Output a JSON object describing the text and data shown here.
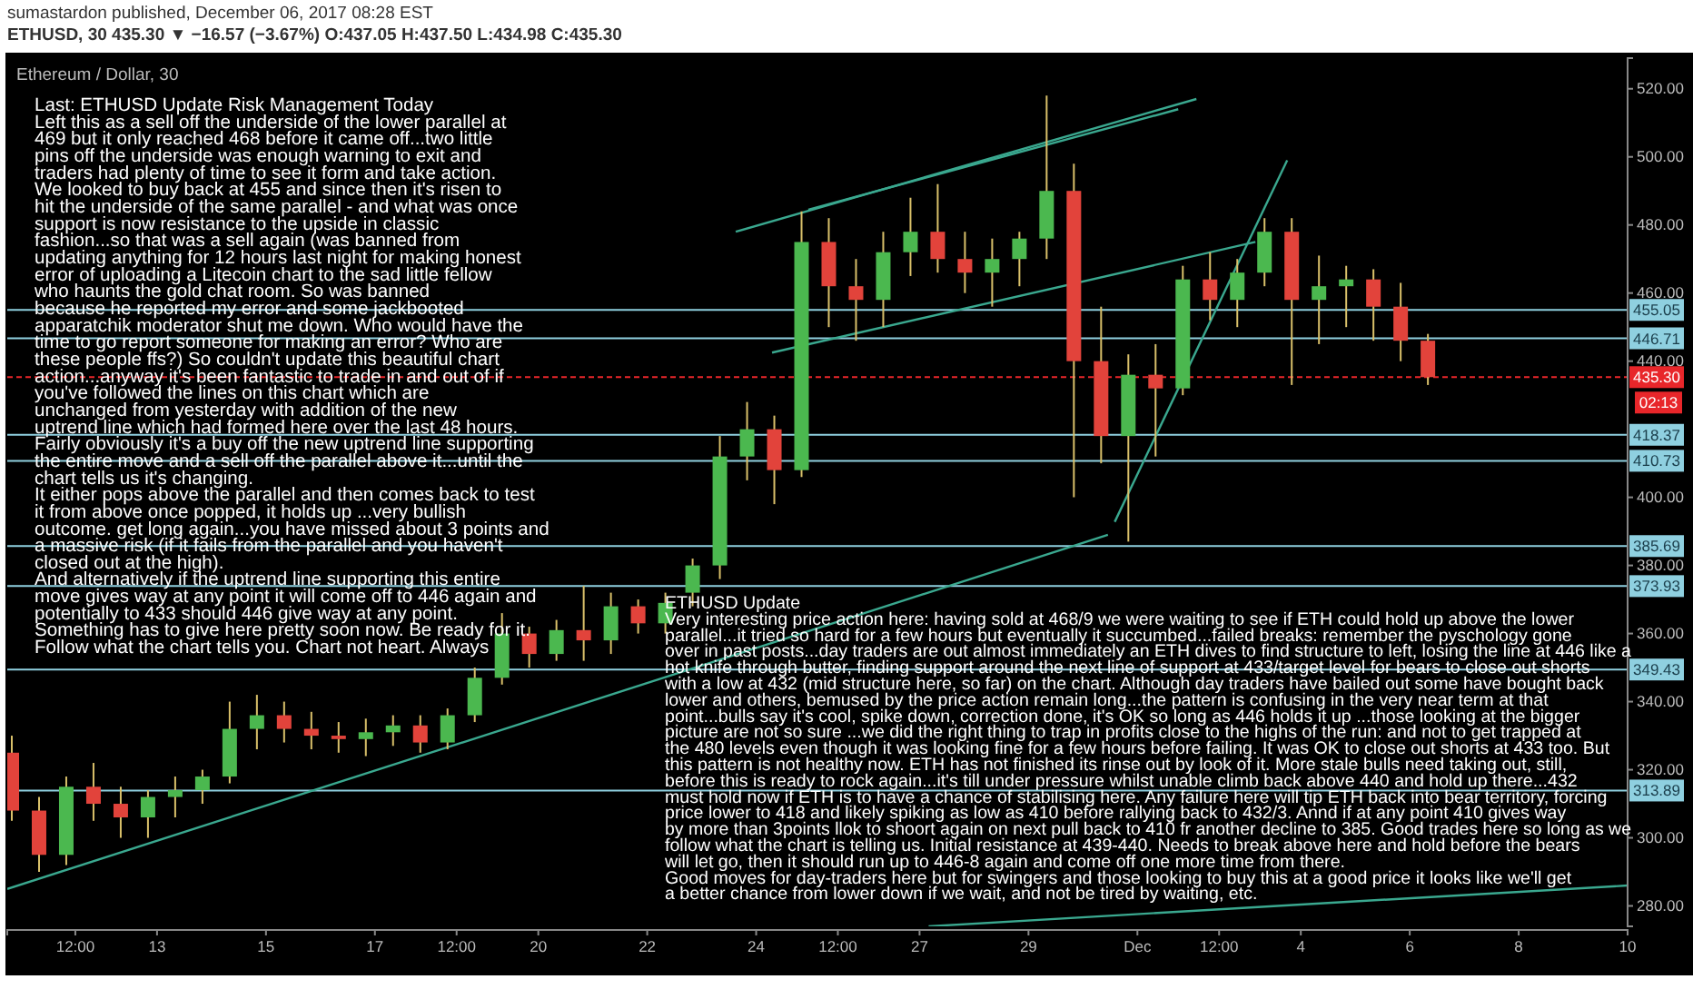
{
  "chart_data": {
    "type": "candlestick",
    "title": "Ethereum / Dollar, 30",
    "subtitle": "ETHUSD, 30 435.30 ▼ −16.57 (−3.67%) O:437.05 H:437.50 L:434.98 C:435.30",
    "annotations": [
      "sumastardon published, December 06, 2017 08:28 EST",
      "Last: ETHUSD Update  Risk Management Today\nLeft this as a sell off the underside of the lower parallel at\n469 but it only reached 468 before it came off...two little\npins off the underside was enough warning to exit and\ntraders had plenty of time to see it form and take action.\nWe looked to buy back at 455 and since then it's risen to\nhit the underside of the same parallel - and what was once\nsupport is now resistance to the upside in classic\nfashion...so that was a sell again (was banned from\nupdating anything for 12 hours last night for making honest\nerror of uploading a Litecoin chart to the sad little fellow\nwho haunts the gold chat room. So was banned\nbecause he reported my error and some jackbooted\napparatchik moderator shut me down. Who would have the\ntime to go report someone for making an error? Who are\nthese people ffs?) So couldn't update this beautiful chart\naction...anyway it's been fantastic to trade in and out of if\nyou've followed the lines on this chart which are\nunchanged from yesterday with addition of the new\nuptrend line which had formed here over the last 48 hours.\nFairly obviously it's a buy off the new uptrend line supporting\nthe entire move and a sell off the parallel above it...until the\nchart tells us it's changing.\nIt either pops above the parallel and then comes back to test\nit from above once popped, it holds up ...very bullish\noutcome. get long again...you have missed about 3 points and\na massive risk (if it fails from the parallel and you haven't\nclosed out at the high).\nAnd alternatively if the uptrend line supporting this entire\nmove gives way at any point it will come off to 446 again and\npotentially to 433 should 446 give way at any point.\nSomething has to give here pretty soon now. Be ready for it.\nFollow what the chart tells you. Chart not heart. Always",
      "ETHUSD  Update\nVery interesting price action here: having sold at 468/9 we were waiting to see if ETH could hold up above the lower\nparallel...it tried so hard for a few hours but eventually it succumbed...failed breaks: remember the pyschology gone\nover in past posts...day traders are out almost immediately an ETH dives to find structure to left, losing the line at 446 like a\nhot knife through butter, finding support around the next line of support at 433/target level for bears to close out shorts\nwith a low at 432 (mid structure here, so far) on the chart. Although day traders have bailed out some have bought back\nlower and others, bemused by the price action remain long...the pattern is confusing in the very near term at that\npoint...bulls say it's cool, spike down, correction done, it's OK so long as 446 holds it up ...those looking at the bigger\npicture are not so sure ...we did the right thing to trap in profits close to the highs of the run: and not to get trapped at\nthe 480 levels even though it was looking fine for a few hours before failing. It was OK to close out shorts at 433 too. But\nthis pattern is not healthy now. ETH has not finished its rinse out by look of it. More stale bulls need taking out, still,\nbefore this is ready to rock again...it's till under pressure whilst unable climb back above 440 and hold up there...432\nmust hold now if ETH is to have a chance of stabilising here. Any failure here will tip ETH back into bear territory, forcing\nprice lower to 418 and likely spiking as low as 410 before rallying back to 432/3. Annd if at any point 410 gives way\nby more than 3points llok to shoort again on next pull back to 410 fr another decline to 385. Good trades here so long as we\nfollow what the chart is telling us. Initial resistance at 439-440. Needs to break above here and hold before the bears\nwill let go, then it should run up to 446-8 again and come off one more time from there.\nGood moves for day-traders here but for swingers and those looking to buy this at a good price it looks like we'll get\na better chance from lower down if we wait, and not be tired by waiting, etc.",
      "02:13"
    ],
    "x": [
      "2017-11-10T08:00",
      "2017-11-10T20:00",
      "2017-11-11T08:00",
      "2017-11-11T20:00",
      "2017-11-12T08:00",
      "2017-11-12T20:00",
      "2017-11-13T08:00",
      "2017-11-13T20:00",
      "2017-11-14T08:00",
      "2017-11-14T20:00",
      "2017-11-15T08:00",
      "2017-11-15T20:00",
      "2017-11-16T08:00",
      "2017-11-16T20:00",
      "2017-11-17T08:00",
      "2017-11-17T20:00",
      "2017-11-18T08:00",
      "2017-11-18T20:00",
      "2017-11-19T08:00",
      "2017-11-19T20:00",
      "2017-11-20T08:00",
      "2017-11-20T20:00",
      "2017-11-21T08:00",
      "2017-11-21T20:00",
      "2017-11-22T08:00",
      "2017-11-22T20:00",
      "2017-11-23T08:00",
      "2017-11-23T20:00",
      "2017-11-24T08:00",
      "2017-11-24T20:00",
      "2017-11-25T08:00",
      "2017-11-25T20:00",
      "2017-11-26T08:00",
      "2017-11-26T20:00",
      "2017-11-27T08:00",
      "2017-11-27T20:00",
      "2017-11-28T08:00",
      "2017-11-28T20:00",
      "2017-11-29T08:00",
      "2017-11-29T20:00",
      "2017-11-30T08:00",
      "2017-11-30T20:00",
      "2017-12-01T08:00",
      "2017-12-01T20:00",
      "2017-12-02T08:00",
      "2017-12-02T20:00",
      "2017-12-03T08:00",
      "2017-12-03T20:00",
      "2017-12-04T08:00",
      "2017-12-04T20:00",
      "2017-12-05T08:00",
      "2017-12-05T20:00",
      "2017-12-06T08:00"
    ],
    "ohlc": [
      [
        325,
        330,
        305,
        308
      ],
      [
        308,
        312,
        290,
        295
      ],
      [
        295,
        318,
        292,
        315
      ],
      [
        315,
        322,
        305,
        310
      ],
      [
        310,
        315,
        300,
        306
      ],
      [
        306,
        314,
        300,
        312
      ],
      [
        312,
        318,
        306,
        314
      ],
      [
        314,
        320,
        310,
        318
      ],
      [
        318,
        340,
        316,
        332
      ],
      [
        332,
        342,
        326,
        336
      ],
      [
        336,
        340,
        328,
        332
      ],
      [
        332,
        337,
        326,
        330
      ],
      [
        330,
        334,
        325,
        329
      ],
      [
        329,
        335,
        324,
        331
      ],
      [
        331,
        336,
        327,
        333
      ],
      [
        333,
        336,
        325,
        328
      ],
      [
        328,
        338,
        326,
        336
      ],
      [
        336,
        350,
        334,
        347
      ],
      [
        347,
        366,
        345,
        360
      ],
      [
        360,
        362,
        350,
        354
      ],
      [
        354,
        364,
        352,
        361
      ],
      [
        361,
        374,
        352,
        358
      ],
      [
        358,
        372,
        354,
        368
      ],
      [
        368,
        370,
        360,
        363
      ],
      [
        363,
        372,
        360,
        369
      ],
      [
        372,
        382,
        368,
        380
      ],
      [
        380,
        418,
        376,
        412
      ],
      [
        412,
        428,
        405,
        420
      ],
      [
        420,
        424,
        398,
        408
      ],
      [
        408,
        484,
        406,
        475
      ],
      [
        475,
        482,
        450,
        462
      ],
      [
        462,
        470,
        446,
        458
      ],
      [
        458,
        478,
        450,
        472
      ],
      [
        472,
        488,
        465,
        478
      ],
      [
        478,
        492,
        466,
        470
      ],
      [
        470,
        478,
        460,
        466
      ],
      [
        466,
        476,
        456,
        470
      ],
      [
        470,
        478,
        462,
        476
      ],
      [
        476,
        518,
        470,
        490
      ],
      [
        490,
        498,
        400,
        440
      ],
      [
        440,
        456,
        410,
        418
      ],
      [
        418,
        442,
        387,
        436
      ],
      [
        436,
        445,
        412,
        432
      ],
      [
        432,
        468,
        430,
        464
      ],
      [
        464,
        472,
        452,
        458
      ],
      [
        458,
        470,
        450,
        466
      ],
      [
        466,
        482,
        462,
        478
      ],
      [
        478,
        482,
        433,
        458
      ],
      [
        458,
        471,
        445,
        462
      ],
      [
        462,
        468,
        450,
        464
      ],
      [
        464,
        467,
        446,
        456
      ],
      [
        456,
        463,
        440,
        446
      ],
      [
        446,
        448,
        433,
        435.3
      ]
    ],
    "series": [
      {
        "type": "line",
        "color": "#3aa88f",
        "x": [
          "2017-11-10T06:00",
          "2017-11-30T11:00"
        ],
        "values": [
          285,
          389
        ]
      },
      {
        "type": "line",
        "color": "#3aa88f",
        "x": [
          "2017-11-30T14:00",
          "2017-12-03T18:00"
        ],
        "values": [
          392.8,
          499
        ]
      },
      {
        "type": "line",
        "color": "#3aa88f",
        "x": [
          "2017-11-27T04:00",
          "2017-12-10T00:00"
        ],
        "values": [
          274,
          286
        ]
      },
      {
        "type": "line",
        "color": "#3aa88f",
        "x": [
          "2017-11-23T15:00",
          "2017-12-02T02:00"
        ],
        "values": [
          478,
          517
        ]
      },
      {
        "type": "line",
        "color": "#3aa88f",
        "x": [
          "2017-11-24T23:00",
          "2017-12-01T18:00"
        ],
        "values": [
          484.5,
          514
        ]
      },
      {
        "type": "line",
        "color": "#3aa88f",
        "x": [
          "2017-11-24T07:00",
          "2017-12-03T04:00"
        ],
        "values": [
          442.5,
          475
        ]
      }
    ],
    "ref_lines": [
      {
        "axis": "y",
        "value": 455.05,
        "label": "455.05",
        "color": "#8fd0e0"
      },
      {
        "axis": "y",
        "value": 446.71,
        "label": "446.71",
        "color": "#8fd0e0"
      },
      {
        "axis": "y",
        "value": 418.37,
        "label": "418.37",
        "color": "#8fd0e0"
      },
      {
        "axis": "y",
        "value": 410.73,
        "label": "410.73",
        "color": "#8fd0e0"
      },
      {
        "axis": "y",
        "value": 385.69,
        "label": "385.69",
        "color": "#8fd0e0"
      },
      {
        "axis": "y",
        "value": 373.93,
        "label": "373.93",
        "color": "#8fd0e0"
      },
      {
        "axis": "y",
        "value": 349.43,
        "label": "349.43",
        "color": "#8fd0e0"
      },
      {
        "axis": "y",
        "value": 313.89,
        "label": "313.89",
        "color": "#8fd0e0"
      },
      {
        "axis": "y",
        "value": 435.3,
        "label": "435.30",
        "color": "#e8262a",
        "line_style": "dashed"
      }
    ],
    "xlim": [
      "2017-11-10T06:00",
      "2017-12-10T00:00"
    ],
    "xticks": [
      {
        "value": "2017-11-11T12:00",
        "label": "12:00"
      },
      {
        "value": "2017-11-13",
        "label": "13"
      },
      {
        "value": "2017-11-15",
        "label": "15"
      },
      {
        "value": "2017-11-17",
        "label": "17"
      },
      {
        "value": "2017-11-18T12:00",
        "label": "12:00"
      },
      {
        "value": "2017-11-20",
        "label": "20"
      },
      {
        "value": "2017-11-22",
        "label": "22"
      },
      {
        "value": "2017-11-24",
        "label": "24"
      },
      {
        "value": "2017-11-25T12:00",
        "label": "12:00"
      },
      {
        "value": "2017-11-27",
        "label": "27"
      },
      {
        "value": "2017-11-29",
        "label": "29"
      },
      {
        "value": "2017-12-01",
        "label": "Dec"
      },
      {
        "value": "2017-12-02T12:00",
        "label": "12:00"
      },
      {
        "value": "2017-12-04",
        "label": "4"
      },
      {
        "value": "2017-12-06",
        "label": "6"
      },
      {
        "value": "2017-12-08",
        "label": "8"
      },
      {
        "value": "2017-12-10",
        "label": "10"
      }
    ],
    "ylim": [
      274,
      529
    ],
    "yticks": [
      {
        "value": 280,
        "label": "280.00"
      },
      {
        "value": 300,
        "label": "300.00"
      },
      {
        "value": 320,
        "label": "320.00"
      },
      {
        "value": 340,
        "label": "340.00"
      },
      {
        "value": 360,
        "label": "360.00"
      },
      {
        "value": 380,
        "label": "380.00"
      },
      {
        "value": 400,
        "label": "400.00"
      },
      {
        "value": 440,
        "label": "440.00"
      },
      {
        "value": 460,
        "label": "460.00"
      },
      {
        "value": 480,
        "label": "480.00"
      },
      {
        "value": 500,
        "label": "500.00"
      },
      {
        "value": 520,
        "label": "520.00"
      }
    ]
  }
}
